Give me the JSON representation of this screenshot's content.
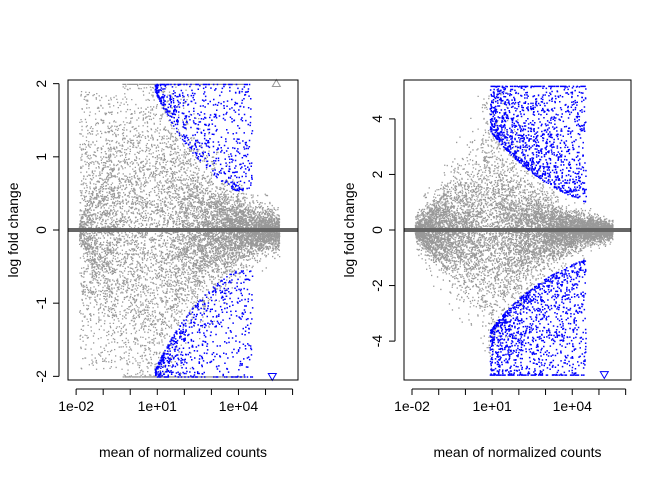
{
  "chart_data": [
    {
      "type": "scatter",
      "title": "",
      "xlabel": "mean of normalized counts",
      "ylabel": "log fold change",
      "xscale": "log10",
      "xlim_log10": [
        -2.3,
        6.2
      ],
      "ylim": [
        -2.05,
        2.05
      ],
      "xticks": [
        {
          "log10": -2,
          "label": "1e-02"
        },
        {
          "log10": 1,
          "label": "1e+01"
        },
        {
          "log10": 4,
          "label": "1e+04"
        }
      ],
      "yticks": [
        {
          "value": -2,
          "label": "-2"
        },
        {
          "value": -1,
          "label": "-1"
        },
        {
          "value": 0,
          "label": "0"
        },
        {
          "value": 1,
          "label": "1"
        },
        {
          "value": 2,
          "label": "2"
        }
      ],
      "hline": {
        "value": 0,
        "color": "#666666"
      },
      "colors": {
        "nonsignificant": "#999999",
        "significant": "#0000ff"
      },
      "series": [
        {
          "values_profile": "gray cloud of non-significant genes; |LFC| spread shrinks with mean count; points clipped to ±2 shown at boundary",
          "sig_upper_region": [
            [
              0.8,
              2.0
            ],
            [
              1.0,
              1.85
            ],
            [
              1.5,
              1.55
            ],
            [
              2.0,
              1.25
            ],
            [
              2.5,
              1.0
            ],
            [
              3.0,
              0.8
            ],
            [
              3.5,
              0.68
            ],
            [
              4.0,
              0.6
            ]
          ],
          "sig_lower_region": [
            [
              1.4,
              -1.98
            ],
            [
              2.0,
              -1.75
            ],
            [
              2.5,
              -1.45
            ],
            [
              3.0,
              -1.2
            ],
            [
              3.5,
              -0.95
            ],
            [
              4.0,
              -0.8
            ],
            [
              4.4,
              -0.7
            ]
          ],
          "outliers": [
            {
              "x": 5.4,
              "y": 2.0,
              "marker": "open-triangle-up",
              "color": "#999999"
            },
            {
              "x": 5.25,
              "y": -2.0,
              "marker": "open-triangle-down",
              "color": "#0000ff"
            }
          ]
        }
      ]
    },
    {
      "type": "scatter",
      "title": "",
      "xlabel": "mean of normalized counts",
      "ylabel": "log fold change",
      "xscale": "log10",
      "xlim_log10": [
        -2.3,
        6.2
      ],
      "ylim": [
        -5.4,
        5.4
      ],
      "xticks": [
        {
          "log10": -2,
          "label": "1e-02"
        },
        {
          "log10": 1,
          "label": "1e+01"
        },
        {
          "log10": 4,
          "label": "1e+04"
        }
      ],
      "yticks": [
        {
          "value": -4,
          "label": "-4"
        },
        {
          "value": -2,
          "label": "-2"
        },
        {
          "value": 0,
          "label": "0"
        },
        {
          "value": 2,
          "label": "2"
        },
        {
          "value": 4,
          "label": "4"
        }
      ],
      "hline": {
        "value": 0,
        "color": "#666666"
      },
      "colors": {
        "nonsignificant": "#999999",
        "significant": "#0000ff"
      },
      "series": [
        {
          "values_profile": "gray cone of non-significant genes; spread widens toward low counts up to about ±5.2; significant genes (blue) dense at |LFC| 1–5.2 for counts 1e+00–1e+04",
          "outliers": [
            {
              "x": 5.2,
              "y": -5.2,
              "marker": "open-triangle-down",
              "color": "#0000ff"
            }
          ]
        }
      ]
    }
  ]
}
